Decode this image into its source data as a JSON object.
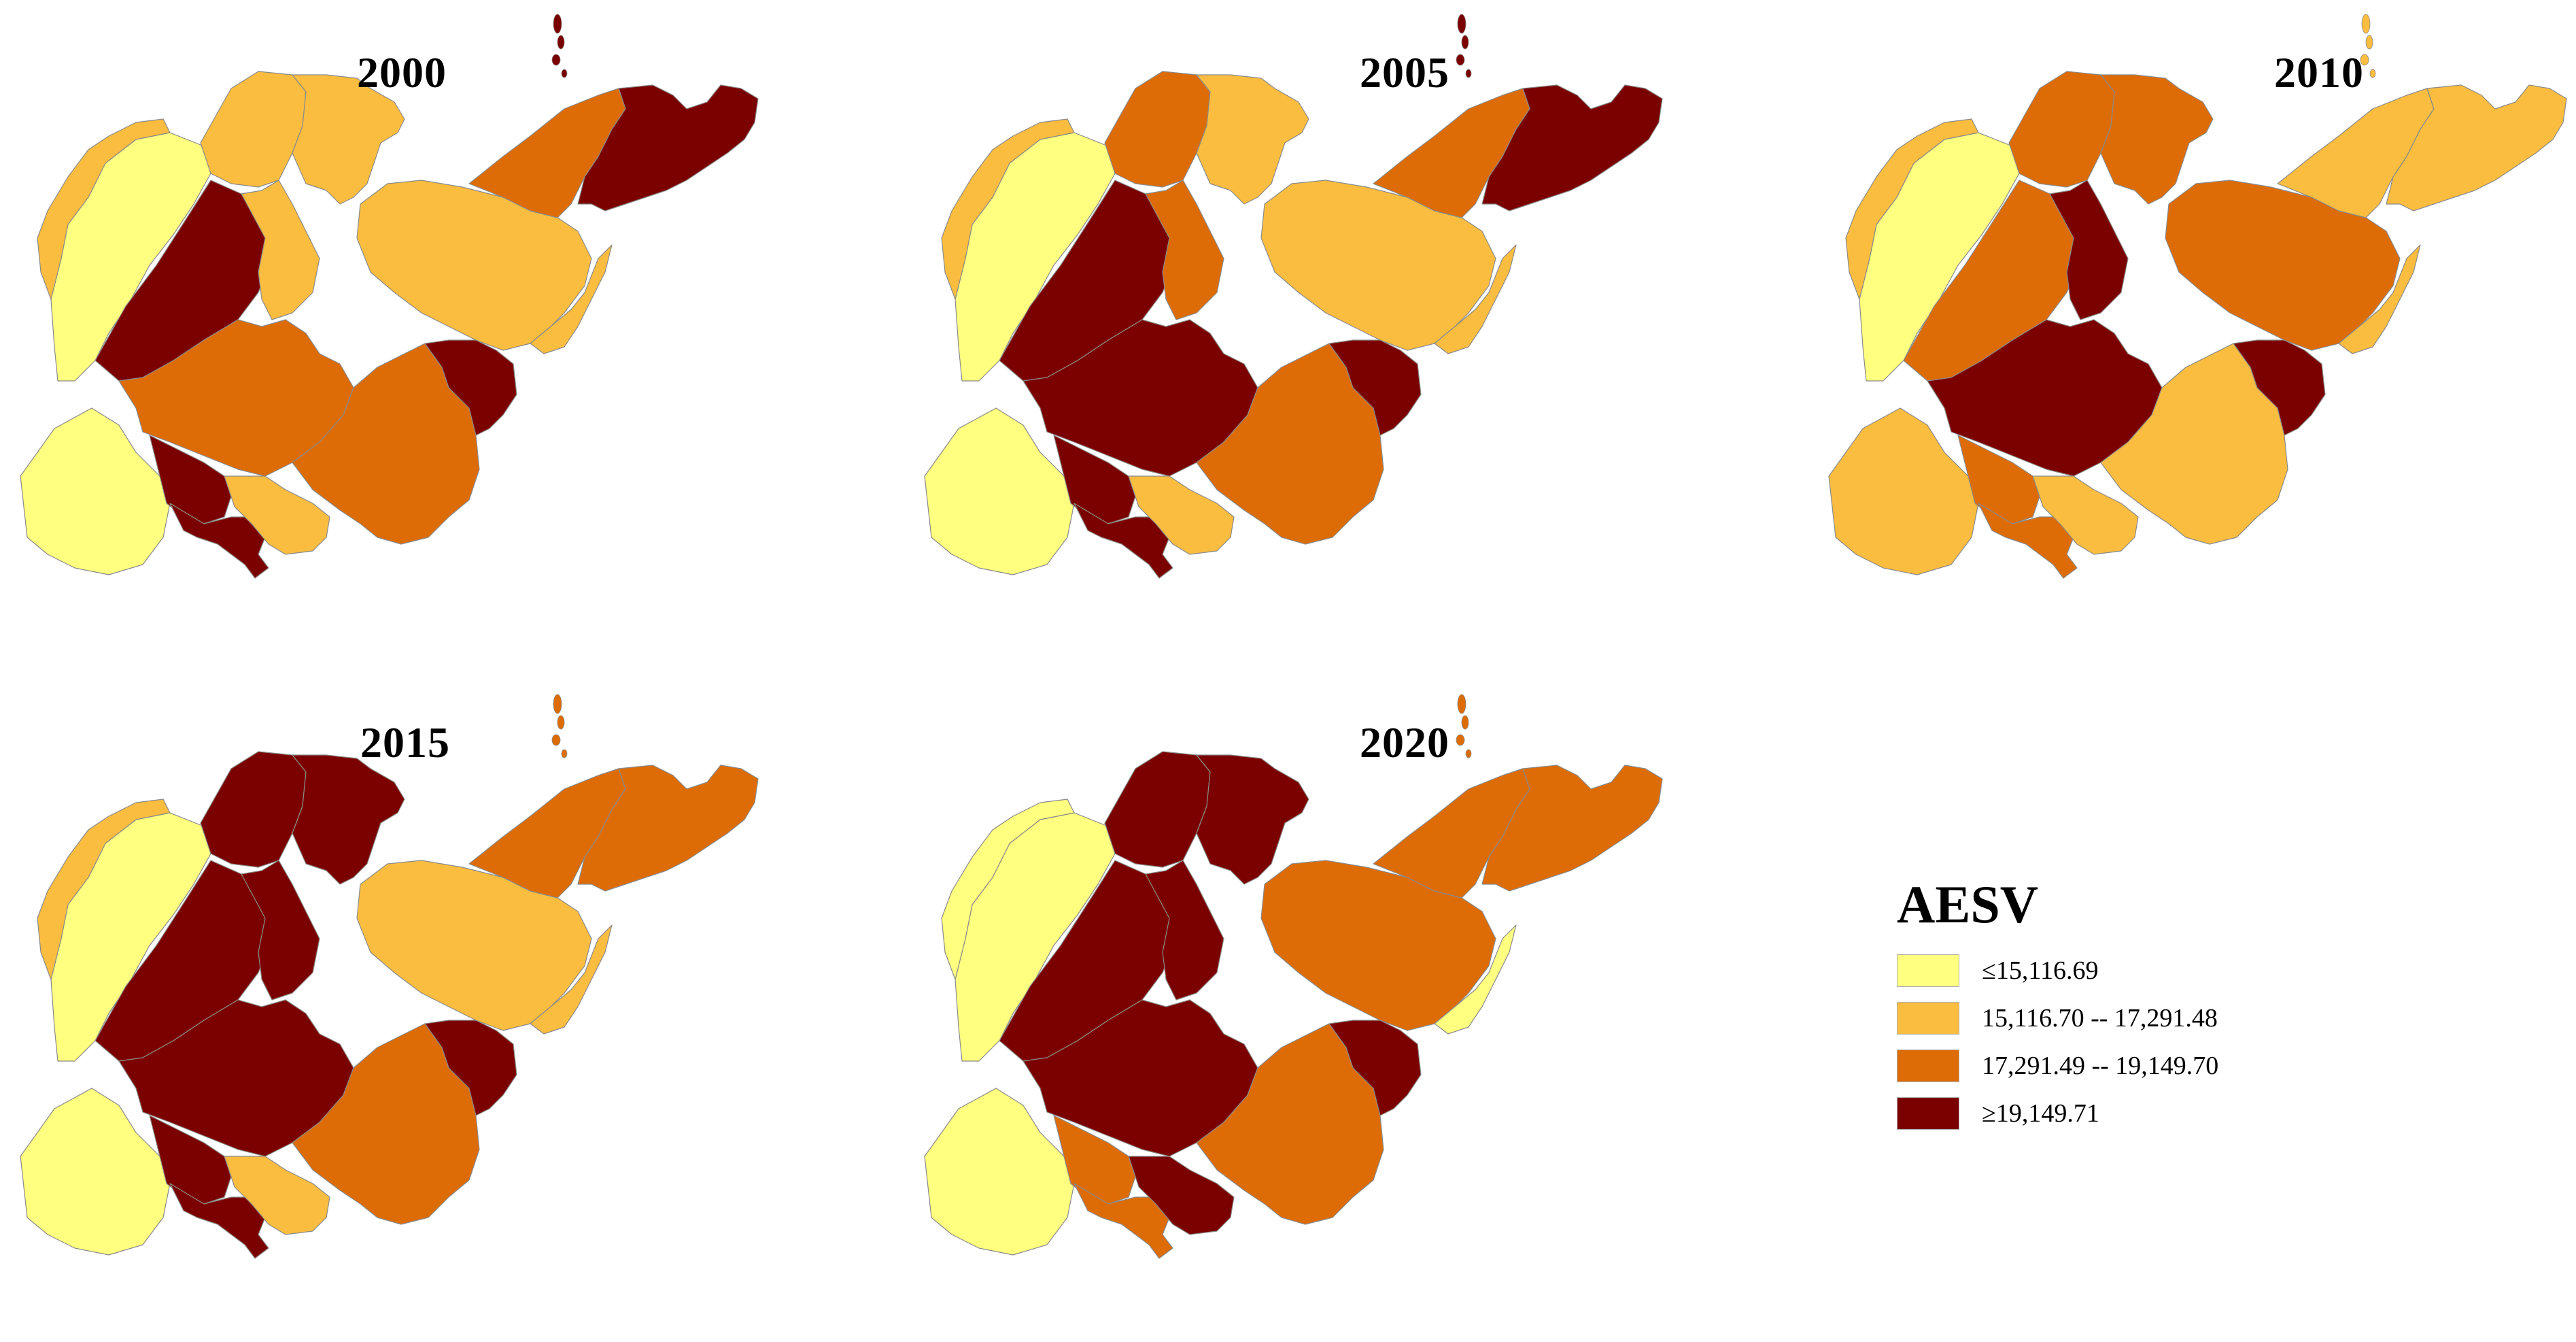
{
  "colors": {
    "c1": "#ffff80",
    "c2": "#fbbd40",
    "c3": "#dd6c06",
    "c4": "#7b0000"
  },
  "panels": [
    {
      "year": "2000",
      "classes": [
        "c1",
        "c2",
        "c2",
        "c1",
        "c4",
        "c2",
        "c2",
        "c3",
        "c4",
        "c4",
        "c3",
        "c2",
        "c4",
        "c2",
        "c3",
        "c4",
        "c2"
      ]
    },
    {
      "year": "2005",
      "classes": [
        "c1",
        "c3",
        "c2",
        "c1",
        "c4",
        "c3",
        "c2",
        "c4",
        "c4",
        "c4",
        "c3",
        "c2",
        "c4",
        "c2",
        "c3",
        "c4",
        "c2"
      ]
    },
    {
      "year": "2010",
      "classes": [
        "c1",
        "c3",
        "c3",
        "c2",
        "c3",
        "c4",
        "c3",
        "c4",
        "c3",
        "c3",
        "c2",
        "c2",
        "c4",
        "c2",
        "c2",
        "c2",
        "c2"
      ]
    },
    {
      "year": "2015",
      "classes": [
        "c1",
        "c4",
        "c4",
        "c1",
        "c4",
        "c4",
        "c2",
        "c4",
        "c4",
        "c4",
        "c3",
        "c2",
        "c4",
        "c2",
        "c3",
        "c3",
        "c2"
      ]
    },
    {
      "year": "2020",
      "classes": [
        "c1",
        "c4",
        "c4",
        "c1",
        "c4",
        "c4",
        "c3",
        "c4",
        "c3",
        "c3",
        "c3",
        "c4",
        "c4",
        "c1",
        "c3",
        "c3",
        "c1"
      ]
    }
  ],
  "legend": {
    "title": "AESV",
    "items": [
      {
        "label": "≤15,116.69",
        "color": "#ffff80"
      },
      {
        "label": "15,116.70 -- 17,291.48",
        "color": "#fbbd40"
      },
      {
        "label": "17,291.49 -- 19,149.70",
        "color": "#dd6c06"
      },
      {
        "label": "≥19,149.71",
        "color": "#7b0000"
      }
    ]
  }
}
